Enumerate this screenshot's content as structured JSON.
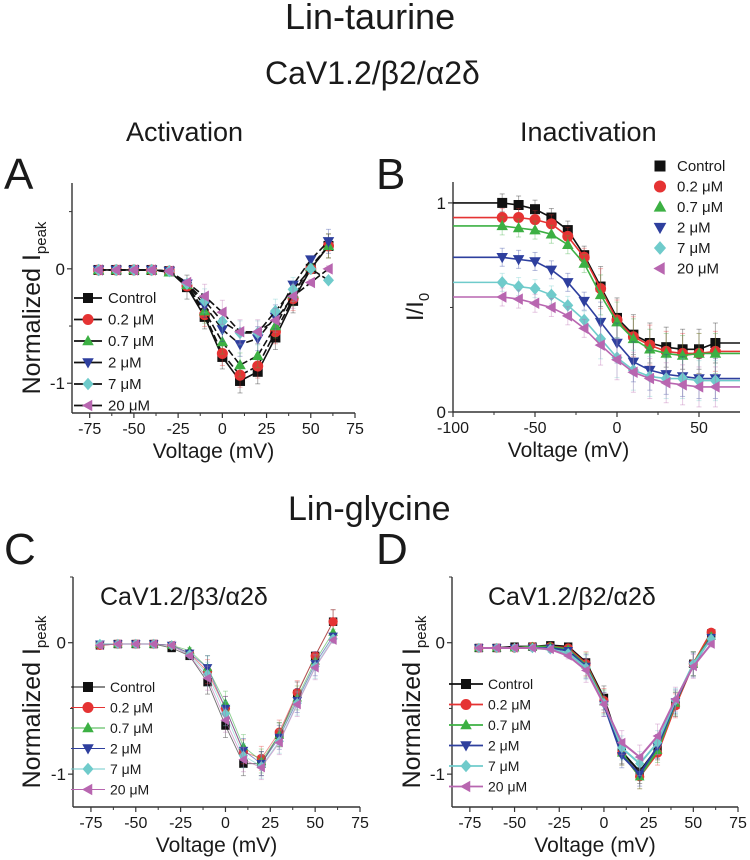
{
  "figure": {
    "title_top": "Lin-taurine",
    "subtitle_top": "CaV1.2/β2/α2δ",
    "title_bottom": "Lin-glycine",
    "col_titles": [
      "Activation",
      "Inactivation"
    ]
  },
  "legend_labels": [
    "Control",
    "0.2 μM",
    "0.7 μM",
    "2 μM",
    "7 μM",
    "20 μM"
  ],
  "series_colors": [
    "#111111",
    "#e53333",
    "#3cb043",
    "#2e3f9e",
    "#6fcbcb",
    "#b866b0"
  ],
  "series_markers": [
    "square",
    "circle",
    "triangle-up",
    "triangle-down",
    "diamond",
    "triangle-left"
  ],
  "chart_data": [
    {
      "panel": "A",
      "type": "line",
      "title": "Activation",
      "xlabel": "Voltage (mV)",
      "ylabel": "Normalized I",
      "ylabel_sub": "peak",
      "xlim": [
        -85,
        75
      ],
      "ylim": [
        -1.26,
        0.75
      ],
      "xticks": [
        -75,
        -50,
        -25,
        0,
        25,
        50,
        75
      ],
      "xtick_labels": [
        "-75",
        "-50",
        "-25",
        "0",
        "25",
        "50",
        "75"
      ],
      "yticks": [
        0,
        -1
      ],
      "ytick_labels": [
        "0",
        "-1"
      ],
      "legend_position": "lower-left",
      "x": [
        -70,
        -60,
        -50,
        -40,
        -30,
        -20,
        -10,
        0,
        10,
        20,
        30,
        40,
        50,
        60
      ],
      "series": [
        {
          "name": "Control",
          "values": [
            -0.01,
            -0.01,
            -0.01,
            -0.01,
            -0.02,
            -0.16,
            -0.42,
            -0.77,
            -0.98,
            -0.9,
            -0.6,
            -0.28,
            0.0,
            0.2
          ]
        },
        {
          "name": "0.2 μM",
          "values": [
            -0.01,
            -0.01,
            -0.01,
            -0.01,
            -0.02,
            -0.15,
            -0.4,
            -0.74,
            -0.93,
            -0.85,
            -0.55,
            -0.26,
            0.0,
            0.2
          ]
        },
        {
          "name": "0.7 μM",
          "values": [
            -0.01,
            -0.01,
            -0.01,
            -0.01,
            -0.03,
            -0.14,
            -0.37,
            -0.64,
            -0.84,
            -0.76,
            -0.5,
            -0.22,
            0.02,
            0.2
          ]
        },
        {
          "name": "2 μM",
          "values": [
            -0.01,
            -0.01,
            -0.01,
            -0.01,
            -0.02,
            -0.13,
            -0.32,
            -0.53,
            -0.66,
            -0.61,
            -0.42,
            -0.14,
            0.08,
            0.24
          ]
        },
        {
          "name": "7 μM",
          "values": [
            -0.01,
            -0.01,
            -0.01,
            -0.01,
            -0.02,
            -0.13,
            -0.28,
            -0.46,
            -0.56,
            -0.56,
            -0.37,
            -0.18,
            0.0,
            -0.1
          ]
        },
        {
          "name": "20 μM",
          "values": [
            -0.01,
            -0.01,
            -0.01,
            -0.01,
            -0.02,
            -0.12,
            -0.24,
            -0.38,
            -0.55,
            -0.55,
            -0.45,
            -0.24,
            -0.12,
            0.0
          ]
        }
      ]
    },
    {
      "panel": "B",
      "type": "line",
      "title": "Inactivation",
      "xlabel": "Voltage (mV)",
      "ylabel": "I/I",
      "ylabel_sub": "0",
      "xlim": [
        -100,
        75
      ],
      "ylim": [
        0,
        1.1
      ],
      "xticks": [
        -100,
        -50,
        0,
        50
      ],
      "xtick_labels": [
        "-100",
        "-50",
        "0",
        "50"
      ],
      "yticks": [
        0,
        1
      ],
      "ytick_labels": [
        "0",
        "1"
      ],
      "legend_position": "top-right",
      "x": [
        -70,
        -60,
        -50,
        -40,
        -30,
        -20,
        -10,
        0,
        10,
        20,
        30,
        40,
        50,
        60
      ],
      "series": [
        {
          "name": "Control",
          "values": [
            1.0,
            0.99,
            0.97,
            0.93,
            0.87,
            0.75,
            0.6,
            0.45,
            0.37,
            0.33,
            0.31,
            0.3,
            0.3,
            0.33
          ]
        },
        {
          "name": "0.2 μM",
          "values": [
            0.93,
            0.93,
            0.92,
            0.9,
            0.84,
            0.74,
            0.59,
            0.44,
            0.36,
            0.32,
            0.29,
            0.28,
            0.28,
            0.29
          ]
        },
        {
          "name": "0.7 μM",
          "values": [
            0.89,
            0.88,
            0.87,
            0.85,
            0.8,
            0.71,
            0.56,
            0.43,
            0.35,
            0.3,
            0.28,
            0.27,
            0.28,
            0.28
          ]
        },
        {
          "name": "2 μM",
          "values": [
            0.74,
            0.73,
            0.72,
            0.68,
            0.62,
            0.53,
            0.43,
            0.33,
            0.24,
            0.2,
            0.18,
            0.17,
            0.16,
            0.16
          ]
        },
        {
          "name": "7 μM",
          "values": [
            0.62,
            0.6,
            0.59,
            0.56,
            0.51,
            0.44,
            0.35,
            0.26,
            0.2,
            0.17,
            0.16,
            0.16,
            0.15,
            0.15
          ]
        },
        {
          "name": "20 μM",
          "values": [
            0.55,
            0.54,
            0.52,
            0.5,
            0.46,
            0.4,
            0.32,
            0.25,
            0.19,
            0.16,
            0.14,
            0.13,
            0.12,
            0.12
          ]
        }
      ]
    },
    {
      "panel": "C",
      "type": "line",
      "title": "CaV1.2/β3/α2δ",
      "xlabel": "Voltage (mV)",
      "ylabel": "Normalized I",
      "ylabel_sub": "peak",
      "xlim": [
        -85,
        75
      ],
      "ylim": [
        -1.25,
        0.5
      ],
      "xticks": [
        -75,
        -50,
        -25,
        0,
        25,
        50,
        75
      ],
      "xtick_labels": [
        "-75",
        "-50",
        "-25",
        "0",
        "25",
        "50",
        "75"
      ],
      "yticks": [
        0,
        -1
      ],
      "ytick_labels": [
        "0",
        "-1"
      ],
      "legend_position": "lower-left",
      "x": [
        -70,
        -60,
        -50,
        -40,
        -30,
        -20,
        -10,
        0,
        10,
        20,
        30,
        40,
        50,
        60
      ],
      "series": [
        {
          "name": "Control",
          "values": [
            -0.02,
            -0.01,
            -0.01,
            -0.01,
            -0.04,
            -0.1,
            -0.3,
            -0.63,
            -0.92,
            -0.92,
            -0.7,
            -0.39,
            -0.1,
            0.16
          ]
        },
        {
          "name": "0.2 μM",
          "values": [
            -0.02,
            -0.01,
            -0.01,
            -0.01,
            -0.02,
            -0.08,
            -0.22,
            -0.5,
            -0.83,
            -0.88,
            -0.68,
            -0.38,
            -0.1,
            0.16
          ]
        },
        {
          "name": "0.7 μM",
          "values": [
            -0.01,
            -0.01,
            -0.01,
            -0.01,
            -0.02,
            -0.06,
            -0.19,
            -0.46,
            -0.79,
            -0.9,
            -0.7,
            -0.42,
            -0.14,
            0.08
          ]
        },
        {
          "name": "2 μM",
          "values": [
            -0.01,
            -0.01,
            -0.01,
            -0.01,
            -0.02,
            -0.08,
            -0.19,
            -0.5,
            -0.82,
            -0.92,
            -0.72,
            -0.44,
            -0.16,
            0.05
          ]
        },
        {
          "name": "7 μM",
          "values": [
            -0.01,
            -0.01,
            -0.01,
            -0.01,
            -0.02,
            -0.09,
            -0.24,
            -0.54,
            -0.86,
            -0.94,
            -0.75,
            -0.46,
            -0.18,
            0.03
          ]
        },
        {
          "name": "20 μM",
          "values": [
            -0.02,
            -0.01,
            -0.01,
            -0.01,
            -0.02,
            -0.1,
            -0.27,
            -0.59,
            -0.89,
            -0.95,
            -0.76,
            -0.47,
            -0.19,
            0.02
          ]
        }
      ]
    },
    {
      "panel": "D",
      "type": "line",
      "title": "CaV1.2/β2/α2δ",
      "xlabel": "Voltage (mV)",
      "ylabel": "Normalized I",
      "ylabel_sub": "peak",
      "xlim": [
        -85,
        75
      ],
      "ylim": [
        -1.25,
        0.5
      ],
      "xticks": [
        -75,
        -50,
        -25,
        0,
        25,
        50,
        75
      ],
      "xtick_labels": [
        "-75",
        "-50",
        "-25",
        "0",
        "25",
        "50",
        "75"
      ],
      "yticks": [
        0,
        -1
      ],
      "ytick_labels": [
        "0",
        "-1"
      ],
      "legend_position": "lower-left",
      "x": [
        -70,
        -60,
        -50,
        -40,
        -30,
        -20,
        -10,
        0,
        10,
        20,
        30,
        40,
        50,
        60
      ],
      "series": [
        {
          "name": "Control",
          "values": [
            -0.04,
            -0.04,
            -0.03,
            -0.03,
            -0.02,
            -0.03,
            -0.15,
            -0.42,
            -0.83,
            -0.98,
            -0.8,
            -0.47,
            -0.16,
            0.07
          ]
        },
        {
          "name": "0.2 μM",
          "values": [
            -0.04,
            -0.04,
            -0.04,
            -0.03,
            -0.03,
            -0.04,
            -0.16,
            -0.44,
            -0.84,
            -1.02,
            -0.84,
            -0.48,
            -0.16,
            0.08
          ]
        },
        {
          "name": "0.7 μM",
          "values": [
            -0.04,
            -0.04,
            -0.04,
            -0.03,
            -0.03,
            -0.05,
            -0.17,
            -0.45,
            -0.84,
            -1.02,
            -0.82,
            -0.46,
            -0.16,
            0.05
          ]
        },
        {
          "name": "2 μM",
          "values": [
            -0.04,
            -0.04,
            -0.04,
            -0.04,
            -0.04,
            -0.06,
            -0.18,
            -0.47,
            -0.86,
            -1.0,
            -0.79,
            -0.45,
            -0.17,
            0.04
          ]
        },
        {
          "name": "7 μM",
          "values": [
            -0.04,
            -0.04,
            -0.04,
            -0.04,
            -0.05,
            -0.08,
            -0.19,
            -0.46,
            -0.8,
            -0.92,
            -0.76,
            -0.44,
            -0.16,
            0.03
          ]
        },
        {
          "name": "20 μM",
          "values": [
            -0.04,
            -0.04,
            -0.04,
            -0.04,
            -0.05,
            -0.1,
            -0.21,
            -0.47,
            -0.76,
            -0.87,
            -0.71,
            -0.43,
            -0.18,
            -0.01
          ]
        }
      ]
    }
  ]
}
